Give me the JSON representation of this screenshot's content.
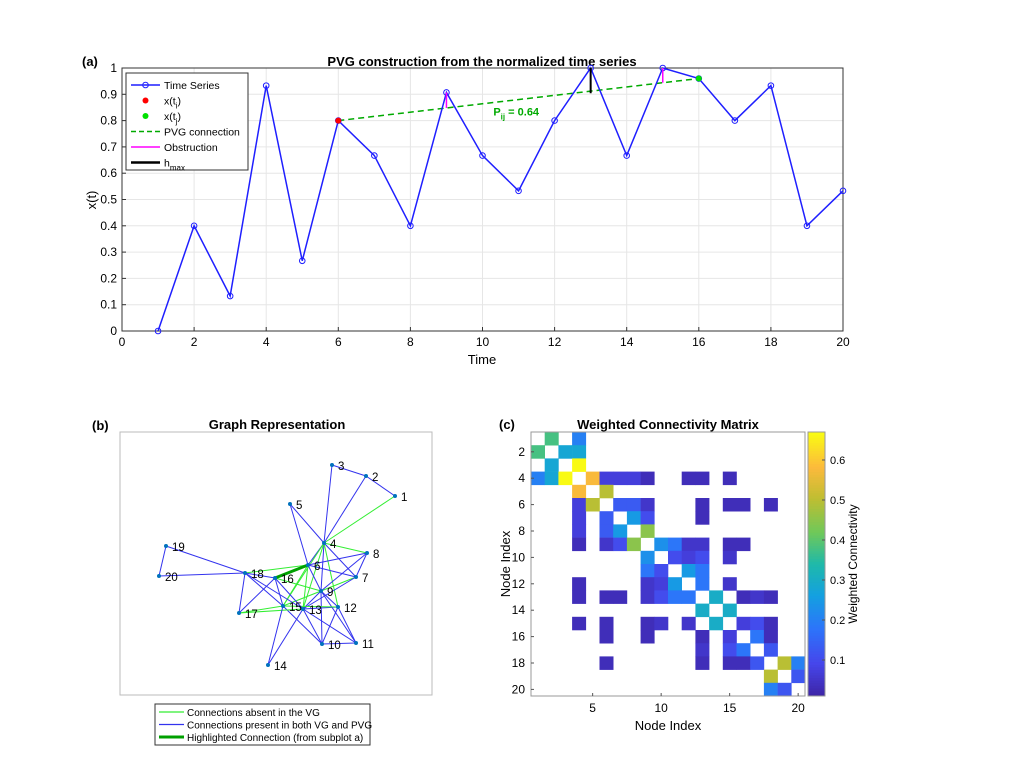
{
  "chart_data": [
    {
      "panel": "(a)",
      "type": "line",
      "title": "PVG construction from the normalized time series",
      "xlabel": "Time",
      "ylabel": "x(t)",
      "xlim": [
        0,
        20
      ],
      "ylim": [
        0,
        1
      ],
      "xticks": [
        "0",
        "2",
        "4",
        "6",
        "8",
        "10",
        "12",
        "14",
        "16",
        "18",
        "20"
      ],
      "yticks": [
        "0",
        "0.1",
        "0.2",
        "0.3",
        "0.4",
        "0.5",
        "0.6",
        "0.7",
        "0.8",
        "0.9",
        "1"
      ],
      "grid": true,
      "legend_position": "top-left",
      "x": [
        1,
        2,
        3,
        4,
        5,
        6,
        7,
        8,
        9,
        10,
        11,
        12,
        13,
        14,
        15,
        16,
        17,
        18,
        19,
        20
      ],
      "y": [
        0,
        0.4,
        0.133,
        0.933,
        0.267,
        0.8,
        0.667,
        0.4,
        0.907,
        0.667,
        0.533,
        0.8,
        1.0,
        0.667,
        1.0,
        0.96,
        0.8,
        0.933,
        0.4,
        0.533
      ],
      "point_i": [
        6,
        0.8
      ],
      "point_j": [
        16,
        0.96
      ],
      "obstructions": [
        [
          9,
          0.907,
          0.848
        ],
        [
          15,
          1.0,
          0.944
        ]
      ],
      "hmax": [
        13,
        0.904,
        1.0
      ],
      "annotation": {
        "base": "P",
        "sub": "ij",
        "text": " = 0.64",
        "at": [
          10.3,
          0.82
        ]
      },
      "legend": [
        {
          "base": "Time Series",
          "sub": "",
          "tail": "",
          "style": "series"
        },
        {
          "base": "x(t",
          "sub": "i",
          "tail": ")",
          "style": "red-dot"
        },
        {
          "base": "x(t",
          "sub": "j",
          "tail": ")",
          "style": "green-dot"
        },
        {
          "base": "PVG connection",
          "sub": "",
          "tail": "",
          "style": "green-dash"
        },
        {
          "base": "Obstruction",
          "sub": "",
          "tail": "",
          "style": "magenta"
        },
        {
          "base": "h",
          "sub": "max",
          "tail": "",
          "style": "black"
        }
      ],
      "colors": {
        "series": "#1f1fff",
        "xi": "#ff0000",
        "xj": "#00e000",
        "pvg": "#00aa00",
        "obstruction": "#ff00ff",
        "hmax": "#000000"
      }
    },
    {
      "panel": "(b)",
      "type": "network",
      "title": "Graph Representation",
      "nodes": [
        "1",
        "2",
        "3",
        "4",
        "5",
        "6",
        "7",
        "8",
        "9",
        "10",
        "11",
        "12",
        "13",
        "14",
        "15",
        "16",
        "17",
        "18",
        "19",
        "20"
      ],
      "green_edges": [
        [
          1,
          4
        ],
        [
          4,
          8
        ],
        [
          4,
          12
        ],
        [
          4,
          13
        ],
        [
          4,
          15
        ],
        [
          6,
          13
        ],
        [
          6,
          15
        ],
        [
          6,
          18
        ],
        [
          9,
          15
        ],
        [
          9,
          16
        ],
        [
          13,
          17
        ],
        [
          15,
          17
        ],
        [
          12,
          15
        ],
        [
          7,
          9
        ]
      ],
      "highlighted_edge": [
        6,
        16
      ],
      "legend": [
        "Connections absent in the VG",
        "Connections present in both VG and PVG",
        "Highlighted Connection (from subplot a)"
      ],
      "colors": {
        "absent": "#33ee33",
        "present": "#3333ee",
        "highlight": "#00a000",
        "node": "#0072bd"
      }
    },
    {
      "panel": "(c)",
      "type": "heatmap",
      "title": "Weighted Connectivity Matrix",
      "xlabel": "Node Index",
      "ylabel": "Node Index",
      "xticks": [
        "5",
        "10",
        "15",
        "20"
      ],
      "yticks": [
        "2",
        "4",
        "6",
        "8",
        "10",
        "12",
        "14",
        "16",
        "18",
        "20"
      ],
      "colorbar_label": "Weighted Connectivity",
      "colorbar_ticks": [
        "0.1",
        "0.2",
        "0.3",
        "0.4",
        "0.5",
        "0.6"
      ],
      "colorbar_range": [
        0.01,
        0.67
      ],
      "colormap": "parula",
      "entries": [
        [
          1,
          2,
          0.38
        ],
        [
          1,
          4,
          0.2
        ],
        [
          2,
          3,
          0.28
        ],
        [
          2,
          4,
          0.28
        ],
        [
          3,
          4,
          0.67
        ],
        [
          4,
          5,
          0.58
        ],
        [
          4,
          6,
          0.07
        ],
        [
          4,
          7,
          0.07
        ],
        [
          4,
          8,
          0.07
        ],
        [
          4,
          9,
          0.03
        ],
        [
          4,
          12,
          0.03
        ],
        [
          4,
          13,
          0.03
        ],
        [
          4,
          15,
          0.03
        ],
        [
          5,
          6,
          0.5
        ],
        [
          6,
          7,
          0.13
        ],
        [
          6,
          8,
          0.13
        ],
        [
          6,
          9,
          0.05
        ],
        [
          6,
          13,
          0.03
        ],
        [
          6,
          15,
          0.03
        ],
        [
          6,
          16,
          0.03
        ],
        [
          6,
          18,
          0.03
        ],
        [
          7,
          8,
          0.25
        ],
        [
          7,
          9,
          0.1
        ],
        [
          7,
          13,
          0.03
        ],
        [
          8,
          9,
          0.45
        ],
        [
          9,
          10,
          0.23
        ],
        [
          9,
          11,
          0.18
        ],
        [
          9,
          12,
          0.05
        ],
        [
          9,
          13,
          0.05
        ],
        [
          9,
          15,
          0.03
        ],
        [
          9,
          16,
          0.03
        ],
        [
          10,
          11,
          0.1
        ],
        [
          10,
          12,
          0.07
        ],
        [
          10,
          13,
          0.1
        ],
        [
          10,
          15,
          0.05
        ],
        [
          11,
          12,
          0.25
        ],
        [
          11,
          13,
          0.18
        ],
        [
          12,
          13,
          0.18
        ],
        [
          12,
          15,
          0.05
        ],
        [
          13,
          14,
          0.3
        ],
        [
          13,
          16,
          0.03
        ],
        [
          13,
          17,
          0.05
        ],
        [
          13,
          18,
          0.03
        ],
        [
          14,
          15,
          0.3
        ],
        [
          15,
          16,
          0.07
        ],
        [
          15,
          17,
          0.1
        ],
        [
          15,
          18,
          0.03
        ],
        [
          16,
          17,
          0.18
        ],
        [
          16,
          18,
          0.03
        ],
        [
          17,
          18,
          0.12
        ],
        [
          18,
          19,
          0.5
        ],
        [
          18,
          20,
          0.2
        ],
        [
          19,
          20,
          0.12
        ]
      ]
    }
  ]
}
